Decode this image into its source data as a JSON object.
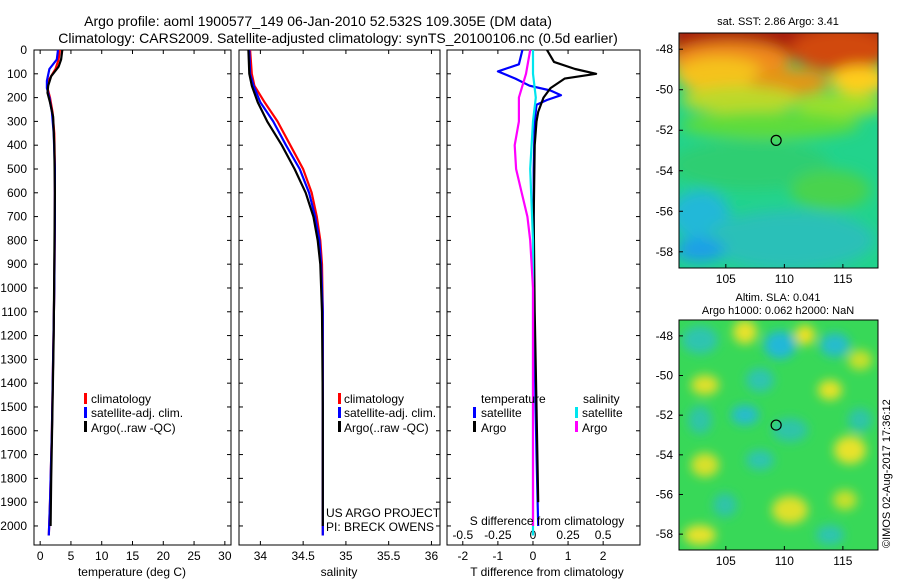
{
  "header": {
    "title_line1": "Argo profile: aoml 1900577_149 06-Jan-2010 52.532S 109.305E (DM data)",
    "title_line2": "Climatology: CARS2009. Satellite-adjusted climatology: synTS_20100106.nc (0.5d earlier)"
  },
  "credit": "©IMOS 02-Aug-2017 17:36:12",
  "project": {
    "line1": "US ARGO PROJECT",
    "line2": "PI: BRECK OWENS"
  },
  "colors": {
    "climatology": "#ff0000",
    "satellite": "#0000ff",
    "argo": "#000000",
    "sal_satellite": "#00e5ee",
    "sal_argo": "#ff00ff"
  },
  "depth_axis": {
    "min": 0,
    "max": 2080,
    "ticks": [
      0,
      100,
      200,
      300,
      400,
      500,
      600,
      700,
      800,
      900,
      1000,
      1100,
      1200,
      1300,
      1400,
      1500,
      1600,
      1700,
      1800,
      1900,
      2000
    ],
    "tick_labels": [
      "0",
      "100",
      "200",
      "300",
      "400",
      "500",
      "600",
      "700",
      "800",
      "900",
      "1000",
      "1100",
      "1200",
      "1300",
      "1400",
      "1500",
      "1600",
      "1700",
      "1800",
      "1900",
      "2000"
    ]
  },
  "legend_profiles": {
    "climatology": "climatology",
    "satellite": "satellite-adj. clim.",
    "argo": "Argo(..raw -QC)"
  },
  "legend_diff": {
    "temp_header": "temperature",
    "sal_header": "salinity",
    "satellite": "satellite",
    "argo": "Argo"
  },
  "map_top": {
    "title": "sat. SST: 2.86 Argo: 3.41",
    "lat_ticks": [
      -48,
      -50,
      -52,
      -54,
      -56,
      -58
    ],
    "lat_labels": [
      "-48",
      "-50",
      "-52",
      "-54",
      "-56",
      "-58"
    ],
    "lon_ticks": [
      105,
      110,
      115
    ],
    "lon_labels": [
      "105",
      "110",
      "115"
    ],
    "xlim": [
      101,
      118
    ],
    "ylim": [
      -58.8,
      -47.2
    ],
    "marker": {
      "lon": 109.3,
      "lat": -52.5
    }
  },
  "map_bottom": {
    "title_line1": "Altim. SLA: 0.041",
    "title_line2": "Argo h1000: 0.062 h2000: NaN",
    "lat_ticks": [
      -48,
      -50,
      -52,
      -54,
      -56,
      -58
    ],
    "lat_labels": [
      "-48",
      "-50",
      "-52",
      "-54",
      "-56",
      "-58"
    ],
    "lon_ticks": [
      105,
      110,
      115
    ],
    "lon_labels": [
      "105",
      "110",
      "115"
    ],
    "xlim": [
      101,
      118
    ],
    "ylim": [
      -58.8,
      -47.2
    ],
    "marker": {
      "lon": 109.3,
      "lat": -52.5
    }
  },
  "chart_data": [
    {
      "type": "line",
      "xlabel": "temperature (deg C)",
      "ylabel": "",
      "xlim": [
        -1,
        31
      ],
      "ylim": [
        2080,
        0
      ],
      "x_ticks": [
        0,
        5,
        10,
        15,
        20,
        25,
        30
      ],
      "x_tick_labels": [
        "0",
        "5",
        "10",
        "15",
        "20",
        "25",
        "30"
      ],
      "series": [
        {
          "name": "climatology",
          "color": "#ff0000",
          "points": [
            [
              3.2,
              0
            ],
            [
              3.0,
              40
            ],
            [
              2.5,
              80
            ],
            [
              1.3,
              130
            ],
            [
              1.2,
              160
            ],
            [
              1.6,
              200
            ],
            [
              2.0,
              260
            ],
            [
              2.3,
              350
            ],
            [
              2.4,
              500
            ],
            [
              2.4,
              700
            ],
            [
              2.3,
              1000
            ],
            [
              2.1,
              1300
            ],
            [
              1.9,
              1600
            ],
            [
              1.6,
              1900
            ],
            [
              1.4,
              2040
            ]
          ]
        },
        {
          "name": "satellite-adj. clim.",
          "color": "#0000ff",
          "points": [
            [
              2.9,
              0
            ],
            [
              2.7,
              40
            ],
            [
              1.5,
              80
            ],
            [
              1.1,
              130
            ],
            [
              1.1,
              160
            ],
            [
              1.5,
              200
            ],
            [
              1.9,
              260
            ],
            [
              2.2,
              350
            ],
            [
              2.4,
              500
            ],
            [
              2.4,
              700
            ],
            [
              2.3,
              1000
            ],
            [
              2.1,
              1300
            ],
            [
              1.9,
              1600
            ],
            [
              1.6,
              1900
            ],
            [
              1.4,
              2040
            ]
          ]
        },
        {
          "name": "Argo(..raw -QC)",
          "color": "#000000",
          "points": [
            [
              3.6,
              0
            ],
            [
              3.4,
              40
            ],
            [
              3.0,
              70
            ],
            [
              1.8,
              110
            ],
            [
              1.3,
              150
            ],
            [
              1.2,
              180
            ],
            [
              1.6,
              220
            ],
            [
              2.1,
              280
            ],
            [
              2.3,
              400
            ],
            [
              2.4,
              600
            ],
            [
              2.3,
              900
            ],
            [
              2.2,
              1200
            ],
            [
              2.0,
              1500
            ],
            [
              1.8,
              1800
            ],
            [
              1.7,
              2000
            ]
          ]
        }
      ]
    },
    {
      "type": "line",
      "xlabel": "salinity",
      "ylabel": "",
      "xlim": [
        33.75,
        36.1
      ],
      "ylim": [
        2080,
        0
      ],
      "x_ticks": [
        34,
        34.5,
        35,
        35.5,
        36
      ],
      "x_tick_labels": [
        "34",
        "34.5",
        "35",
        "35.5",
        "36"
      ],
      "series": [
        {
          "name": "climatology",
          "color": "#ff0000",
          "points": [
            [
              33.88,
              0
            ],
            [
              33.9,
              100
            ],
            [
              33.93,
              150
            ],
            [
              34.05,
              220
            ],
            [
              34.2,
              300
            ],
            [
              34.35,
              400
            ],
            [
              34.5,
              500
            ],
            [
              34.6,
              600
            ],
            [
              34.66,
              700
            ],
            [
              34.7,
              800
            ],
            [
              34.72,
              900
            ],
            [
              34.73,
              1100
            ],
            [
              34.73,
              1500
            ],
            [
              34.73,
              2040
            ]
          ]
        },
        {
          "name": "satellite-adj. clim.",
          "color": "#0000ff",
          "points": [
            [
              33.87,
              0
            ],
            [
              33.88,
              100
            ],
            [
              33.92,
              150
            ],
            [
              34.0,
              220
            ],
            [
              34.15,
              300
            ],
            [
              34.3,
              400
            ],
            [
              34.46,
              500
            ],
            [
              34.57,
              600
            ],
            [
              34.64,
              700
            ],
            [
              34.69,
              800
            ],
            [
              34.71,
              900
            ],
            [
              34.73,
              1100
            ],
            [
              34.73,
              1500
            ],
            [
              34.73,
              2040
            ]
          ]
        },
        {
          "name": "Argo(..raw -QC)",
          "color": "#000000",
          "points": [
            [
              33.86,
              0
            ],
            [
              33.87,
              100
            ],
            [
              33.9,
              150
            ],
            [
              33.97,
              220
            ],
            [
              34.08,
              300
            ],
            [
              34.25,
              400
            ],
            [
              34.4,
              500
            ],
            [
              34.53,
              600
            ],
            [
              34.62,
              700
            ],
            [
              34.67,
              800
            ],
            [
              34.7,
              900
            ],
            [
              34.72,
              1100
            ],
            [
              34.73,
              1500
            ],
            [
              34.73,
              2000
            ]
          ]
        }
      ]
    },
    {
      "type": "line",
      "xlabel": "T difference from climatology",
      "top_label": "S difference from climatology",
      "ylabel": "",
      "xlim": [
        -2.45,
        3.05
      ],
      "ylim": [
        2080,
        0
      ],
      "x_ticks": [
        -2,
        -1,
        0,
        1,
        2
      ],
      "x_tick_labels": [
        "-2",
        "-1",
        "0",
        "1",
        "2"
      ],
      "s_ticks": [
        -0.5,
        -0.25,
        0,
        0.25,
        0.5
      ],
      "s_tick_labels": [
        "-0.5",
        "-0.25",
        "0",
        "0.25",
        "0.5"
      ],
      "s_xlim": [
        -0.6125,
        0.7625
      ],
      "series": [
        {
          "name": "satellite",
          "group": "temperature",
          "color": "#0000ff",
          "points": [
            [
              -0.3,
              0
            ],
            [
              -0.4,
              60
            ],
            [
              -1.0,
              90
            ],
            [
              -0.5,
              120
            ],
            [
              -0.1,
              150
            ],
            [
              0.5,
              170
            ],
            [
              0.8,
              190
            ],
            [
              0.4,
              210
            ],
            [
              0.1,
              230
            ],
            [
              0.05,
              300
            ],
            [
              0.02,
              500
            ],
            [
              0.02,
              900
            ],
            [
              0.05,
              1300
            ],
            [
              0.1,
              1700
            ],
            [
              0.15,
              2000
            ]
          ]
        },
        {
          "name": "Argo",
          "group": "temperature",
          "color": "#000000",
          "points": [
            [
              0.4,
              0
            ],
            [
              0.6,
              50
            ],
            [
              1.2,
              80
            ],
            [
              1.8,
              100
            ],
            [
              0.9,
              120
            ],
            [
              0.5,
              160
            ],
            [
              0.3,
              200
            ],
            [
              0.15,
              260
            ],
            [
              0.1,
              300
            ],
            [
              0.05,
              400
            ],
            [
              0.02,
              700
            ],
            [
              0.05,
              1100
            ],
            [
              0.1,
              1500
            ],
            [
              0.15,
              1900
            ]
          ]
        },
        {
          "name": "satellite",
          "group": "salinity",
          "color": "#00e5ee",
          "points": [
            [
              0.0,
              0
            ],
            [
              0.0,
              100
            ],
            [
              0.02,
              200
            ],
            [
              0.0,
              300
            ],
            [
              -0.02,
              500
            ],
            [
              0.0,
              800
            ],
            [
              0.0,
              1200
            ],
            [
              0.0,
              1600
            ],
            [
              0.0,
              2040
            ]
          ]
        },
        {
          "name": "Argo",
          "group": "salinity",
          "color": "#ff00ff",
          "points": [
            [
              -0.02,
              0
            ],
            [
              -0.05,
              100
            ],
            [
              -0.1,
              200
            ],
            [
              -0.1,
              300
            ],
            [
              -0.13,
              400
            ],
            [
              -0.12,
              500
            ],
            [
              -0.08,
              600
            ],
            [
              -0.04,
              700
            ],
            [
              -0.02,
              800
            ],
            [
              0.0,
              1000
            ],
            [
              0.0,
              1500
            ],
            [
              0.0,
              2000
            ]
          ]
        }
      ]
    }
  ]
}
